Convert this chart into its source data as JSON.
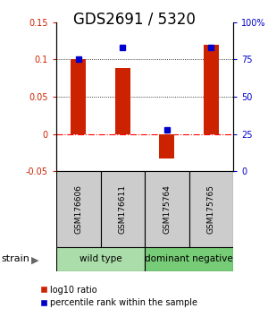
{
  "title": "GDS2691 / 5320",
  "samples": [
    "GSM176606",
    "GSM176611",
    "GSM175764",
    "GSM175765"
  ],
  "log10_ratios": [
    0.1,
    0.089,
    -0.033,
    0.12
  ],
  "percentile_ranks": [
    75,
    83,
    28,
    83
  ],
  "ylim_left": [
    -0.05,
    0.15
  ],
  "ylim_right": [
    0,
    100
  ],
  "yticks_left": [
    -0.05,
    0,
    0.05,
    0.1,
    0.15
  ],
  "yticks_right": [
    0,
    25,
    50,
    75,
    100
  ],
  "groups": [
    {
      "label": "wild type",
      "indices": [
        0,
        1
      ],
      "color": "#aaddaa"
    },
    {
      "label": "dominant negative",
      "indices": [
        2,
        3
      ],
      "color": "#77cc77"
    }
  ],
  "bar_color": "#CC2200",
  "dot_color": "#0000CC",
  "bar_width": 0.35,
  "left_tick_color": "#CC2200",
  "right_tick_color": "#0000CC",
  "title_fontsize": 12,
  "sample_fontsize": 6.5,
  "group_label_fontsize": 7.5,
  "legend_fontsize": 7,
  "strain_fontsize": 8,
  "legend_labels": [
    "log10 ratio",
    "percentile rank within the sample"
  ]
}
